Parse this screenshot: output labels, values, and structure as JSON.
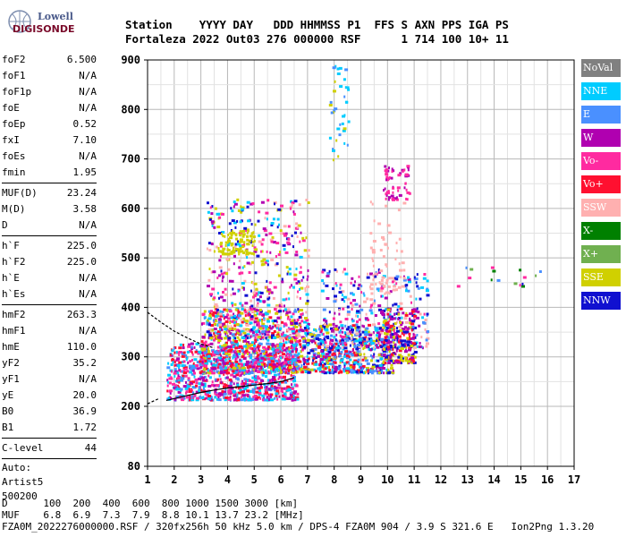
{
  "logo": {
    "line1": "Lowell",
    "line2": "DIGISONDE"
  },
  "header": {
    "labels": "Station    YYYY DAY   DDD HHMMSS P1  FFS S AXN PPS IGA PS",
    "values": "Fortaleza 2022 Out03 276 000000 RSF      1 714 100 10+ 11"
  },
  "params": {
    "group1": [
      {
        "k": "foF2",
        "v": "6.500"
      },
      {
        "k": "foF1",
        "v": "N/A"
      },
      {
        "k": "foF1p",
        "v": "N/A"
      },
      {
        "k": "foE",
        "v": "N/A"
      },
      {
        "k": "foEp",
        "v": "0.52"
      },
      {
        "k": "fxI",
        "v": "7.10"
      },
      {
        "k": "foEs",
        "v": "N/A"
      },
      {
        "k": "fmin",
        "v": "1.95"
      }
    ],
    "group2": [
      {
        "k": "MUF(D)",
        "v": "23.24"
      },
      {
        "k": "M(D)",
        "v": "3.58"
      },
      {
        "k": "D",
        "v": "N/A"
      }
    ],
    "group3": [
      {
        "k": "h`F",
        "v": "225.0"
      },
      {
        "k": "h`F2",
        "v": "225.0"
      },
      {
        "k": "h`E",
        "v": "N/A"
      },
      {
        "k": "h`Es",
        "v": "N/A"
      }
    ],
    "group4": [
      {
        "k": "hmF2",
        "v": "263.3"
      },
      {
        "k": "hmF1",
        "v": "N/A"
      },
      {
        "k": "hmE",
        "v": "110.0"
      },
      {
        "k": "yF2",
        "v": "35.2"
      },
      {
        "k": "yF1",
        "v": "N/A"
      },
      {
        "k": "yE",
        "v": "20.0"
      },
      {
        "k": "B0",
        "v": "36.9"
      },
      {
        "k": "B1",
        "v": "1.72"
      }
    ],
    "group5": [
      {
        "k": "C-level",
        "v": "44"
      }
    ],
    "auto": [
      "Auto:",
      "Artist5",
      "500200"
    ]
  },
  "legend": [
    {
      "label": "NoVal",
      "color": "#808080"
    },
    {
      "label": "NNE",
      "color": "#00ccff"
    },
    {
      "label": "E",
      "color": "#4a90ff"
    },
    {
      "label": "W",
      "color": "#b000b0"
    },
    {
      "label": "Vo-",
      "color": "#ff2aa0"
    },
    {
      "label": "Vo+",
      "color": "#ff1030"
    },
    {
      "label": "SSW",
      "color": "#ffb0b0"
    },
    {
      "label": "X-",
      "color": "#008000"
    },
    {
      "label": "X+",
      "color": "#70b050"
    },
    {
      "label": "SSE",
      "color": "#d0d000"
    },
    {
      "label": "NNW",
      "color": "#1010d0"
    }
  ],
  "footer": {
    "line1": "D      100  200  400  600  800 1000 1500 3000 [km]",
    "line2": "MUF    6.8  6.9  7.3  7.9  8.8 10.1 13.7 23.2 [MHz]",
    "line3": "FZA0M_2022276000000.RSF / 320fx256h 50 kHz 5.0 km / DPS-4 FZA0M 904 / 3.9 S 321.6 E   Ion2Png 1.3.20"
  },
  "chart_data": {
    "type": "scatter",
    "title": "",
    "xlabel": "",
    "ylabel": "",
    "xlim": [
      1,
      17
    ],
    "ylim": [
      80,
      900
    ],
    "xticks": [
      1,
      2,
      3,
      4,
      5,
      6,
      7,
      8,
      9,
      10,
      11,
      12,
      13,
      14,
      15,
      16,
      17
    ],
    "yticks": [
      80,
      200,
      300,
      400,
      500,
      600,
      700,
      800,
      900
    ],
    "grid": true,
    "trace_curve": {
      "x": [
        1.7,
        2.5,
        3.0,
        3.5,
        4.0,
        4.5,
        5.0,
        5.5,
        6.0,
        6.5
      ],
      "y": [
        212,
        222,
        228,
        233,
        237,
        240,
        243,
        246,
        250,
        258
      ]
    },
    "profile_curve": {
      "x": [
        1.0,
        1.5,
        2.0,
        2.5,
        3.0,
        3.5
      ],
      "y": [
        390,
        370,
        352,
        338,
        326,
        318
      ]
    },
    "profile_curve_low": {
      "x": [
        1.0,
        1.4
      ],
      "y": [
        205,
        215
      ]
    },
    "clusters": [
      {
        "x": [
          1.7,
          6.6
        ],
        "y": [
          215,
          330
        ],
        "n": 900,
        "colors": [
          "#ff1030",
          "#ff2aa0",
          "#b000b0",
          "#4a90ff",
          "#00ccff"
        ]
      },
      {
        "x": [
          3.0,
          6.8
        ],
        "y": [
          270,
          400
        ],
        "n": 800,
        "colors": [
          "#ff1030",
          "#ff2aa0",
          "#b000b0",
          "#4a90ff",
          "#00ccff",
          "#d0d000"
        ]
      },
      {
        "x": [
          3.2,
          7.0
        ],
        "y": [
          340,
          620
        ],
        "n": 500,
        "colors": [
          "#b000b0",
          "#ff2aa0",
          "#ffb0b0",
          "#1010d0",
          "#00ccff",
          "#d0d000"
        ]
      },
      {
        "x": [
          3.6,
          5.0
        ],
        "y": [
          510,
          560
        ],
        "n": 80,
        "colors": [
          "#d0d000"
        ]
      },
      {
        "x": [
          6.8,
          10.2
        ],
        "y": [
          270,
          370
        ],
        "n": 600,
        "colors": [
          "#4a90ff",
          "#00ccff",
          "#b000b0",
          "#d0d000",
          "#1010d0",
          "#ff1030"
        ]
      },
      {
        "x": [
          7.5,
          11.5
        ],
        "y": [
          320,
          480
        ],
        "n": 350,
        "colors": [
          "#ffb0b0",
          "#ff2aa0",
          "#4a90ff",
          "#00ccff",
          "#1010d0",
          "#b000b0"
        ]
      },
      {
        "x": [
          9.8,
          11.0
        ],
        "y": [
          290,
          400
        ],
        "n": 200,
        "colors": [
          "#ff1030",
          "#1010d0",
          "#d0d000",
          "#b000b0"
        ]
      },
      {
        "x": [
          9.8,
          10.8
        ],
        "y": [
          620,
          690
        ],
        "n": 60,
        "colors": [
          "#b000b0",
          "#ff2aa0"
        ]
      },
      {
        "x": [
          7.8,
          8.5
        ],
        "y": [
          700,
          890
        ],
        "n": 40,
        "colors": [
          "#00ccff",
          "#d0d000",
          "#4a90ff"
        ]
      },
      {
        "x": [
          9.3,
          10.6
        ],
        "y": [
          430,
          620
        ],
        "n": 60,
        "colors": [
          "#ffb0b0"
        ]
      },
      {
        "x": [
          12.2,
          15.8
        ],
        "y": [
          445,
          485
        ],
        "n": 16,
        "colors": [
          "#008000",
          "#4a90ff",
          "#1010d0",
          "#ff2aa0",
          "#70b050"
        ]
      }
    ]
  }
}
